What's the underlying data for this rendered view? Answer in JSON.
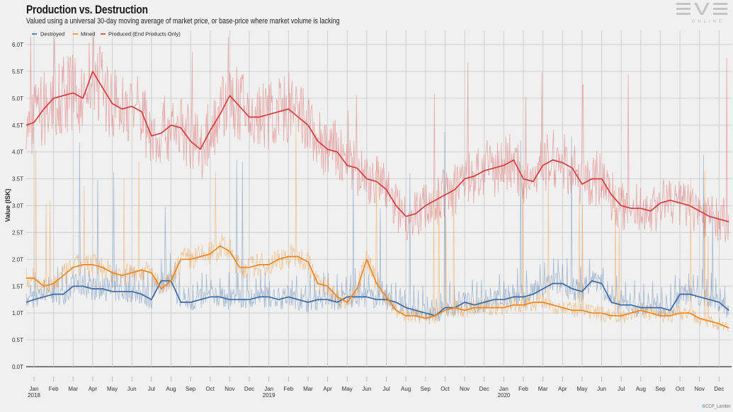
{
  "header": {
    "title": "Production vs. Destruction",
    "subtitle": "Valued using a universal 30-day moving average of market price, or base-price where market volume is lacking",
    "logo_main": "EVE",
    "logo_sub": "ONLINE"
  },
  "attribution": {
    "icon": "twitter-bird-icon",
    "text": "CCP_Larrikin"
  },
  "chart_data": {
    "type": "line",
    "title": "Production vs. Destruction",
    "subtitle": "Valued using a universal 30-day moving average of market price, or base-price where market volume is lacking",
    "xlabel": "",
    "ylabel": "Value (ISK)",
    "ylim": [
      0,
      6.0
    ],
    "yticks": [
      "0.0T",
      "0.5T",
      "1.0T",
      "1.5T",
      "2.0T",
      "2.5T",
      "3.0T",
      "3.5T",
      "4.0T",
      "4.5T",
      "5.0T",
      "5.5T",
      "6.0T"
    ],
    "ytick_values": [
      0,
      0.5,
      1.0,
      1.5,
      2.0,
      2.5,
      3.0,
      3.5,
      4.0,
      4.5,
      5.0,
      5.5,
      6.0
    ],
    "xticks": [
      {
        "m": "Jan",
        "y": "2018"
      },
      {
        "m": "Feb",
        "y": ""
      },
      {
        "m": "Mar",
        "y": ""
      },
      {
        "m": "Apr",
        "y": ""
      },
      {
        "m": "May",
        "y": ""
      },
      {
        "m": "Jun",
        "y": ""
      },
      {
        "m": "Jul",
        "y": ""
      },
      {
        "m": "Aug",
        "y": ""
      },
      {
        "m": "Sep",
        "y": ""
      },
      {
        "m": "Oct",
        "y": ""
      },
      {
        "m": "Nov",
        "y": ""
      },
      {
        "m": "Dec",
        "y": ""
      },
      {
        "m": "Jan",
        "y": "2019"
      },
      {
        "m": "Feb",
        "y": ""
      },
      {
        "m": "Mar",
        "y": ""
      },
      {
        "m": "Apr",
        "y": ""
      },
      {
        "m": "May",
        "y": ""
      },
      {
        "m": "Jun",
        "y": ""
      },
      {
        "m": "Jul",
        "y": ""
      },
      {
        "m": "Aug",
        "y": ""
      },
      {
        "m": "Sep",
        "y": ""
      },
      {
        "m": "Oct",
        "y": ""
      },
      {
        "m": "Nov",
        "y": ""
      },
      {
        "m": "Dec",
        "y": ""
      },
      {
        "m": "Jan",
        "y": "2020"
      },
      {
        "m": "Feb",
        "y": ""
      },
      {
        "m": "Mar",
        "y": ""
      },
      {
        "m": "Apr",
        "y": ""
      },
      {
        "m": "May",
        "y": ""
      },
      {
        "m": "Jun",
        "y": ""
      },
      {
        "m": "Jul",
        "y": ""
      },
      {
        "m": "Aug",
        "y": ""
      },
      {
        "m": "Sep",
        "y": ""
      },
      {
        "m": "Oct",
        "y": ""
      },
      {
        "m": "Nov",
        "y": ""
      },
      {
        "m": "Dec",
        "y": ""
      }
    ],
    "x_months_from_jan2018": [
      -0.4,
      0,
      0.5,
      1,
      1.5,
      2,
      2.5,
      3,
      3.5,
      4,
      4.5,
      5,
      5.5,
      6,
      6.5,
      7,
      7.5,
      8,
      8.5,
      9,
      9.5,
      10,
      10.5,
      11,
      11.5,
      12,
      12.5,
      13,
      13.5,
      14,
      14.5,
      15,
      15.5,
      16,
      16.5,
      17,
      17.5,
      18,
      18.5,
      19,
      19.5,
      20,
      20.5,
      21,
      21.5,
      22,
      22.5,
      23,
      23.5,
      24,
      24.5,
      25,
      25.5,
      26,
      26.5,
      27,
      27.5,
      28,
      28.5,
      29,
      29.5,
      30,
      30.5,
      31,
      31.5,
      32,
      32.5,
      33,
      33.5,
      34,
      34.5,
      35,
      35.5
    ],
    "legend": {
      "placement": "top-left",
      "entries": [
        "Destroyed",
        "Mined",
        "Produced (End Products Only)"
      ]
    },
    "grid": true,
    "units": "trillion ISK",
    "series": [
      {
        "name": "Destroyed",
        "color": "#3a6aa5",
        "trend": [
          1.2,
          1.25,
          1.3,
          1.35,
          1.35,
          1.5,
          1.5,
          1.45,
          1.45,
          1.4,
          1.4,
          1.4,
          1.35,
          1.25,
          1.6,
          1.6,
          1.2,
          1.2,
          1.25,
          1.3,
          1.3,
          1.25,
          1.25,
          1.25,
          1.3,
          1.3,
          1.25,
          1.3,
          1.25,
          1.2,
          1.25,
          1.25,
          1.2,
          1.3,
          1.3,
          1.3,
          1.25,
          1.25,
          1.2,
          1.1,
          1.05,
          1.0,
          0.95,
          1.1,
          1.1,
          1.2,
          1.15,
          1.2,
          1.25,
          1.25,
          1.3,
          1.3,
          1.35,
          1.45,
          1.55,
          1.55,
          1.45,
          1.4,
          1.6,
          1.55,
          1.2,
          1.15,
          1.15,
          1.1,
          1.1,
          1.1,
          1.05,
          1.35,
          1.35,
          1.3,
          1.25,
          1.2,
          1.05
        ]
      },
      {
        "name": "Mined",
        "color": "#f0861a",
        "trend": [
          1.65,
          1.65,
          1.5,
          1.55,
          1.7,
          1.85,
          1.9,
          1.9,
          1.85,
          1.75,
          1.7,
          1.75,
          1.8,
          1.75,
          1.45,
          1.6,
          2.0,
          2.0,
          2.05,
          2.1,
          2.25,
          2.15,
          1.85,
          1.85,
          1.9,
          1.9,
          2.0,
          2.05,
          2.05,
          1.95,
          1.55,
          1.5,
          1.3,
          1.2,
          1.45,
          2.0,
          1.55,
          1.3,
          1.05,
          0.95,
          0.95,
          0.9,
          0.95,
          1.05,
          1.1,
          1.05,
          1.1,
          1.1,
          1.1,
          1.1,
          1.15,
          1.15,
          1.2,
          1.2,
          1.15,
          1.1,
          1.05,
          1.05,
          1.0,
          1.0,
          0.95,
          0.95,
          1.0,
          1.05,
          1.0,
          0.95,
          0.95,
          1.0,
          1.0,
          0.9,
          0.85,
          0.8,
          0.72
        ]
      },
      {
        "name": "Produced (End Products Only)",
        "color": "#d63c3c",
        "trend": [
          4.5,
          4.55,
          4.8,
          5.0,
          5.05,
          5.1,
          5.0,
          5.5,
          5.2,
          4.9,
          4.8,
          4.85,
          4.75,
          4.3,
          4.35,
          4.5,
          4.45,
          4.2,
          4.05,
          4.4,
          4.7,
          5.05,
          4.85,
          4.65,
          4.65,
          4.7,
          4.75,
          4.8,
          4.65,
          4.5,
          4.2,
          4.05,
          4.0,
          3.75,
          3.7,
          3.5,
          3.45,
          3.3,
          3.0,
          2.8,
          2.85,
          3.0,
          3.1,
          3.2,
          3.3,
          3.5,
          3.55,
          3.65,
          3.7,
          3.75,
          3.85,
          3.5,
          3.45,
          3.75,
          3.85,
          3.8,
          3.7,
          3.4,
          3.5,
          3.5,
          3.2,
          3.0,
          2.95,
          2.95,
          2.9,
          3.05,
          3.1,
          3.05,
          3.0,
          2.9,
          2.8,
          2.75,
          2.7
        ]
      }
    ]
  }
}
